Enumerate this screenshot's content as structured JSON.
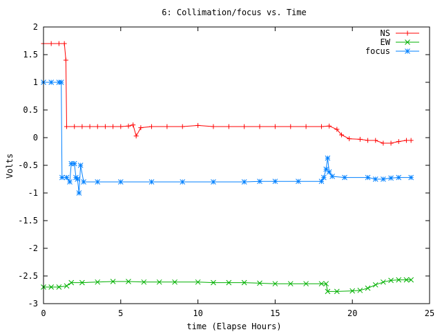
{
  "chart_data": {
    "type": "line",
    "title": "6: Collimation/focus vs. Time",
    "xlabel": "time (Elapse Hours)",
    "ylabel": "Volts",
    "xlim": [
      0,
      25
    ],
    "ylim": [
      -3,
      2
    ],
    "xticks": [
      0,
      5,
      10,
      15,
      20,
      25
    ],
    "yticks": [
      -3,
      -2.5,
      -2,
      -1.5,
      -1,
      -0.5,
      0,
      0.5,
      1,
      1.5,
      2
    ],
    "legend_position": "top-right",
    "series": [
      {
        "name": "NS",
        "color": "#ff0000",
        "marker": "plus",
        "points": [
          [
            0,
            1.7
          ],
          [
            0.5,
            1.7
          ],
          [
            1.0,
            1.7
          ],
          [
            1.35,
            1.7
          ],
          [
            1.45,
            1.4
          ],
          [
            1.5,
            0.2
          ],
          [
            2.0,
            0.2
          ],
          [
            2.5,
            0.2
          ],
          [
            3.0,
            0.2
          ],
          [
            3.5,
            0.2
          ],
          [
            4.0,
            0.2
          ],
          [
            4.5,
            0.2
          ],
          [
            5.0,
            0.2
          ],
          [
            5.5,
            0.21
          ],
          [
            5.8,
            0.23
          ],
          [
            6.0,
            0.03
          ],
          [
            6.3,
            0.18
          ],
          [
            7.0,
            0.2
          ],
          [
            8.0,
            0.2
          ],
          [
            9.0,
            0.2
          ],
          [
            10.0,
            0.22
          ],
          [
            11.0,
            0.2
          ],
          [
            12.0,
            0.2
          ],
          [
            13.0,
            0.2
          ],
          [
            14.0,
            0.2
          ],
          [
            15.0,
            0.2
          ],
          [
            16.0,
            0.2
          ],
          [
            17.0,
            0.2
          ],
          [
            18.0,
            0.2
          ],
          [
            18.5,
            0.21
          ],
          [
            19.0,
            0.15
          ],
          [
            19.3,
            0.05
          ],
          [
            19.8,
            -0.02
          ],
          [
            20.5,
            -0.03
          ],
          [
            21.0,
            -0.05
          ],
          [
            21.5,
            -0.05
          ],
          [
            22.0,
            -0.1
          ],
          [
            22.5,
            -0.1
          ],
          [
            23.0,
            -0.07
          ],
          [
            23.5,
            -0.05
          ],
          [
            23.8,
            -0.05
          ]
        ]
      },
      {
        "name": "EW",
        "color": "#00b000",
        "marker": "cross",
        "points": [
          [
            0,
            -2.7
          ],
          [
            0.5,
            -2.7
          ],
          [
            1.0,
            -2.7
          ],
          [
            1.5,
            -2.68
          ],
          [
            1.8,
            -2.62
          ],
          [
            2.5,
            -2.62
          ],
          [
            3.5,
            -2.61
          ],
          [
            4.5,
            -2.6
          ],
          [
            5.5,
            -2.6
          ],
          [
            6.5,
            -2.61
          ],
          [
            7.5,
            -2.61
          ],
          [
            8.5,
            -2.61
          ],
          [
            10.0,
            -2.61
          ],
          [
            11.0,
            -2.62
          ],
          [
            12.0,
            -2.62
          ],
          [
            13.0,
            -2.62
          ],
          [
            14.0,
            -2.63
          ],
          [
            15.0,
            -2.64
          ],
          [
            16.0,
            -2.64
          ],
          [
            17.0,
            -2.64
          ],
          [
            18.0,
            -2.64
          ],
          [
            18.3,
            -2.64
          ],
          [
            18.4,
            -2.78
          ],
          [
            19.0,
            -2.78
          ],
          [
            20.0,
            -2.77
          ],
          [
            20.5,
            -2.76
          ],
          [
            21.0,
            -2.72
          ],
          [
            21.5,
            -2.66
          ],
          [
            22.0,
            -2.61
          ],
          [
            22.5,
            -2.58
          ],
          [
            23.0,
            -2.57
          ],
          [
            23.5,
            -2.57
          ],
          [
            23.8,
            -2.57
          ]
        ]
      },
      {
        "name": "focus",
        "color": "#0080ff",
        "marker": "star",
        "points": [
          [
            0,
            1.0
          ],
          [
            0.5,
            1.0
          ],
          [
            1.0,
            1.0
          ],
          [
            1.15,
            1.0
          ],
          [
            1.2,
            -0.72
          ],
          [
            1.5,
            -0.72
          ],
          [
            1.7,
            -0.8
          ],
          [
            1.8,
            -0.47
          ],
          [
            2.0,
            -0.47
          ],
          [
            2.1,
            -0.72
          ],
          [
            2.2,
            -0.75
          ],
          [
            2.3,
            -1.0
          ],
          [
            2.4,
            -0.5
          ],
          [
            2.6,
            -0.8
          ],
          [
            3.5,
            -0.8
          ],
          [
            5.0,
            -0.8
          ],
          [
            7.0,
            -0.8
          ],
          [
            9.0,
            -0.8
          ],
          [
            11.0,
            -0.8
          ],
          [
            13.0,
            -0.8
          ],
          [
            14.0,
            -0.79
          ],
          [
            15.0,
            -0.79
          ],
          [
            16.5,
            -0.79
          ],
          [
            18.0,
            -0.79
          ],
          [
            18.15,
            -0.72
          ],
          [
            18.3,
            -0.57
          ],
          [
            18.4,
            -0.37
          ],
          [
            18.5,
            -0.62
          ],
          [
            18.7,
            -0.7
          ],
          [
            19.5,
            -0.72
          ],
          [
            21.0,
            -0.72
          ],
          [
            21.5,
            -0.75
          ],
          [
            22.0,
            -0.75
          ],
          [
            22.5,
            -0.73
          ],
          [
            23.0,
            -0.72
          ],
          [
            23.8,
            -0.72
          ]
        ]
      }
    ]
  }
}
